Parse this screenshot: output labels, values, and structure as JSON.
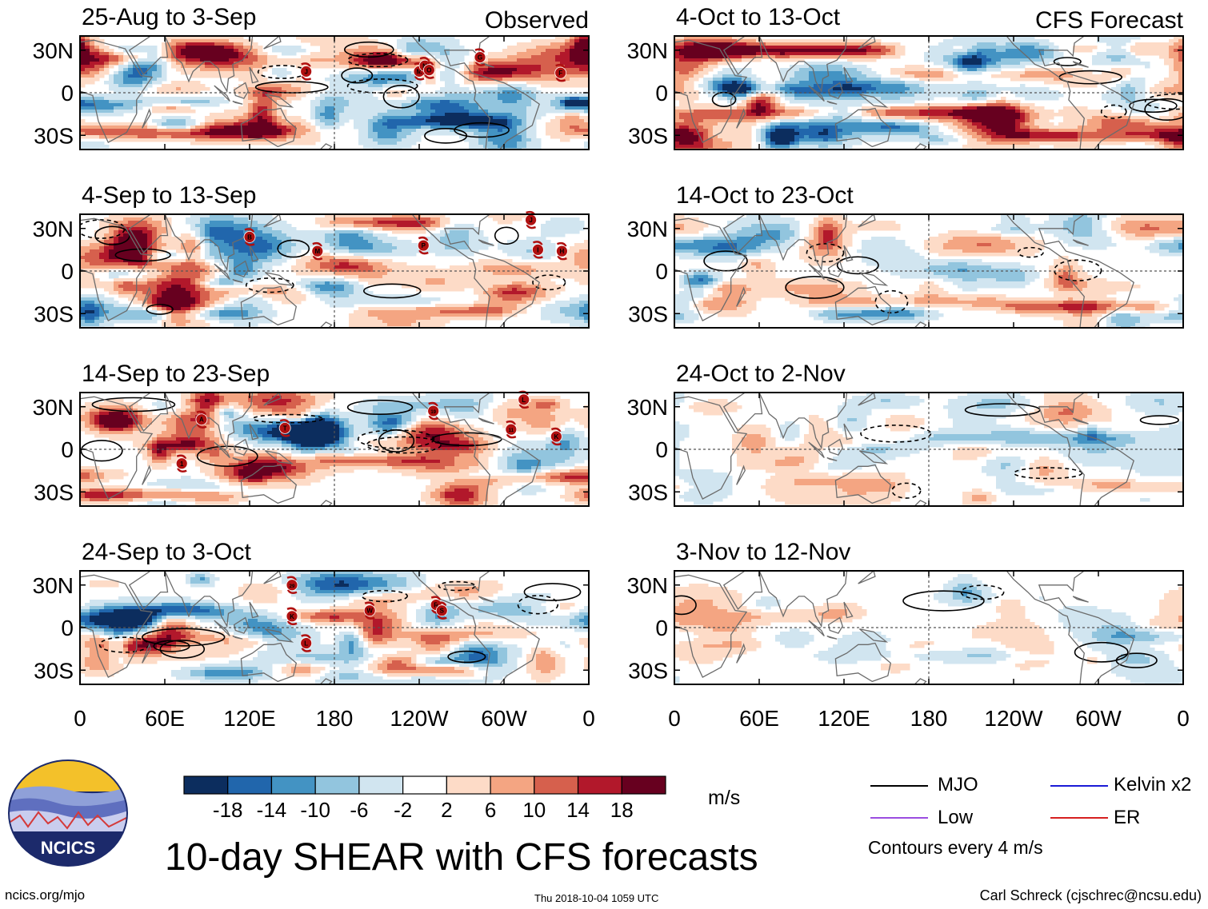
{
  "title": "10-day SHEAR with CFS forecasts",
  "units": "m/s",
  "logo_text": "NCICS",
  "footer": {
    "left": "ncics.org/mjo",
    "middle": "Thu 2018-10-04 1059 UTC",
    "right": "Carl Schreck (cjschrec@ncsu.edu)"
  },
  "columns": {
    "left_header": "Observed",
    "right_header": "CFS Forecast"
  },
  "axes": {
    "lat_ticks": [
      "30N",
      "0",
      "30S"
    ],
    "lon_ticks": [
      "0",
      "60E",
      "120E",
      "180",
      "120W",
      "60W",
      "0"
    ]
  },
  "legend": {
    "items": [
      {
        "label": "MJO",
        "color": "#000000",
        "dashed": false
      },
      {
        "label": "Kelvin x2",
        "color": "#1a1ad6",
        "dashed": false
      },
      {
        "label": "Low",
        "color": "#9b4de0",
        "dashed": false
      },
      {
        "label": "ER",
        "color": "#d62020",
        "dashed": false
      }
    ],
    "contour_note": "Contours every 4 m/s"
  },
  "colorbar": {
    "colors": [
      "#0c2d5e",
      "#2166ac",
      "#4393c3",
      "#92c5de",
      "#d1e5f0",
      "#ffffff",
      "#fddbc7",
      "#f4a582",
      "#d6604d",
      "#b2182b",
      "#67001f"
    ],
    "labels": [
      "-18",
      "-14",
      "-10",
      "-6",
      "-2",
      "2",
      "6",
      "10",
      "14",
      "18"
    ]
  },
  "chart_data": [
    {
      "type": "heatmap",
      "title": "25-Aug to 3-Sep",
      "column": "Observed",
      "variable": "10-day vertical wind shear anomaly",
      "units": "m/s",
      "storms": [
        {
          "label": "J",
          "lon": 160,
          "lat": 15
        },
        {
          "label": "M",
          "lon": 240,
          "lat": 15
        },
        {
          "label": "N",
          "lon": 244,
          "lat": 19
        },
        {
          "label": "O",
          "lon": 247,
          "lat": 16
        },
        {
          "label": "G",
          "lon": 283,
          "lat": 25
        },
        {
          "label": "F",
          "lon": 340,
          "lat": 14
        }
      ]
    },
    {
      "type": "heatmap",
      "title": "4-Sep to 13-Sep",
      "column": "Observed",
      "variable": "10-day vertical wind shear anomaly",
      "units": "m/s",
      "storms": [
        {
          "label": "B",
          "lon": 120,
          "lat": 24
        },
        {
          "label": "M",
          "lon": 168,
          "lat": 14
        },
        {
          "label": "P",
          "lon": 243,
          "lat": 18
        },
        {
          "label": "J",
          "lon": 319,
          "lat": 36
        },
        {
          "label": "I",
          "lon": 324,
          "lat": 15
        },
        {
          "label": "H",
          "lon": 341,
          "lat": 14
        }
      ]
    },
    {
      "type": "heatmap",
      "title": "14-Sep to 23-Sep",
      "column": "Observed",
      "variable": "10-day vertical wind shear anomaly",
      "units": "m/s",
      "storms": [
        {
          "label": "1",
          "lon": 72,
          "lat": -10
        },
        {
          "label": "A",
          "lon": 86,
          "lat": 21
        },
        {
          "label": "T",
          "lon": 145,
          "lat": 15
        },
        {
          "label": "19",
          "lon": 250,
          "lat": 27
        },
        {
          "label": "L",
          "lon": 314,
          "lat": 35
        },
        {
          "label": "11",
          "lon": 305,
          "lat": 14
        },
        {
          "label": "K",
          "lon": 337,
          "lat": 9
        }
      ]
    },
    {
      "type": "heatmap",
      "title": "24-Sep to 3-Oct",
      "column": "Observed",
      "variable": "10-day vertical wind shear anomaly",
      "units": "m/s",
      "storms": [
        {
          "label": "29",
          "lon": 150,
          "lat": 30
        },
        {
          "label": "K",
          "lon": 150,
          "lat": 8
        },
        {
          "label": "L",
          "lon": 160,
          "lat": -11
        },
        {
          "label": "W",
          "lon": 205,
          "lat": 12
        },
        {
          "label": "R",
          "lon": 252,
          "lat": 16
        },
        {
          "label": "S",
          "lon": 256,
          "lat": 12
        }
      ]
    },
    {
      "type": "heatmap",
      "title": "4-Oct to 13-Oct",
      "column": "CFS Forecast",
      "variable": "10-day vertical wind shear forecast anomaly",
      "units": "m/s",
      "storms": []
    },
    {
      "type": "heatmap",
      "title": "14-Oct to 23-Oct",
      "column": "CFS Forecast",
      "variable": "10-day vertical wind shear forecast anomaly",
      "units": "m/s",
      "storms": []
    },
    {
      "type": "heatmap",
      "title": "24-Oct to 2-Nov",
      "column": "CFS Forecast",
      "variable": "10-day vertical wind shear forecast anomaly",
      "units": "m/s",
      "storms": []
    },
    {
      "type": "heatmap",
      "title": "3-Nov to 12-Nov",
      "column": "CFS Forecast",
      "variable": "10-day vertical wind shear forecast anomaly",
      "units": "m/s",
      "storms": []
    }
  ]
}
